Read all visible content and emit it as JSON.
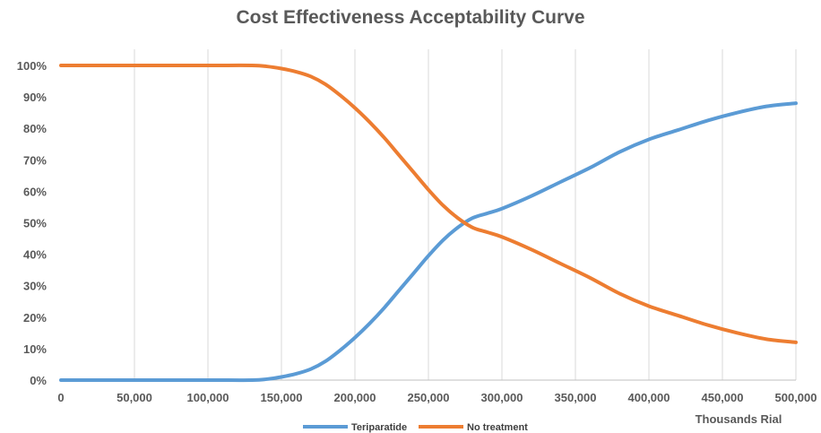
{
  "chart_data": {
    "type": "line",
    "title": "Cost Effectiveness Acceptability Curve",
    "xlabel": "Thousands Rial",
    "ylabel": "",
    "x_ticks": [
      "0",
      "50,000",
      "100,000",
      "150,000",
      "200,000",
      "250,000",
      "300,000",
      "350,000",
      "400,000",
      "450,000",
      "500,000"
    ],
    "y_ticks": [
      "0%",
      "10%",
      "20%",
      "30%",
      "40%",
      "50%",
      "60%",
      "70%",
      "80%",
      "90%",
      "100%"
    ],
    "xlim": [
      0,
      500000
    ],
    "ylim": [
      0,
      100
    ],
    "grid": "vertical",
    "legend": "bottom",
    "series": [
      {
        "name": "Teriparatide",
        "color": "#5B9BD5",
        "x": [
          0,
          50000,
          100000,
          130000,
          140000,
          150000,
          160000,
          170000,
          180000,
          190000,
          200000,
          210000,
          220000,
          230000,
          240000,
          250000,
          260000,
          270000,
          280000,
          290000,
          300000,
          320000,
          340000,
          360000,
          380000,
          400000,
          420000,
          440000,
          460000,
          480000,
          500000
        ],
        "y": [
          0,
          0,
          0,
          0,
          0.3,
          1.0,
          2.0,
          3.5,
          6.0,
          9.5,
          13.5,
          18.0,
          23.0,
          28.5,
          34.0,
          39.5,
          44.5,
          48.5,
          51.5,
          53.0,
          54.5,
          58.5,
          63.0,
          67.5,
          72.5,
          76.5,
          79.5,
          82.5,
          85.0,
          87.0,
          88.0
        ]
      },
      {
        "name": "No treatment",
        "color": "#ED7D31",
        "x": [
          0,
          50000,
          100000,
          130000,
          140000,
          150000,
          160000,
          170000,
          180000,
          190000,
          200000,
          210000,
          220000,
          230000,
          240000,
          250000,
          260000,
          270000,
          280000,
          290000,
          300000,
          320000,
          340000,
          360000,
          380000,
          400000,
          420000,
          440000,
          460000,
          480000,
          500000
        ],
        "y": [
          100,
          100,
          100,
          100,
          99.7,
          99.0,
          98.0,
          96.5,
          94.0,
          90.5,
          86.5,
          82.0,
          77.0,
          71.5,
          66.0,
          60.5,
          55.5,
          51.5,
          48.5,
          47.0,
          45.5,
          41.5,
          37.0,
          32.5,
          27.5,
          23.5,
          20.5,
          17.5,
          15.0,
          13.0,
          12.0
        ]
      }
    ]
  }
}
